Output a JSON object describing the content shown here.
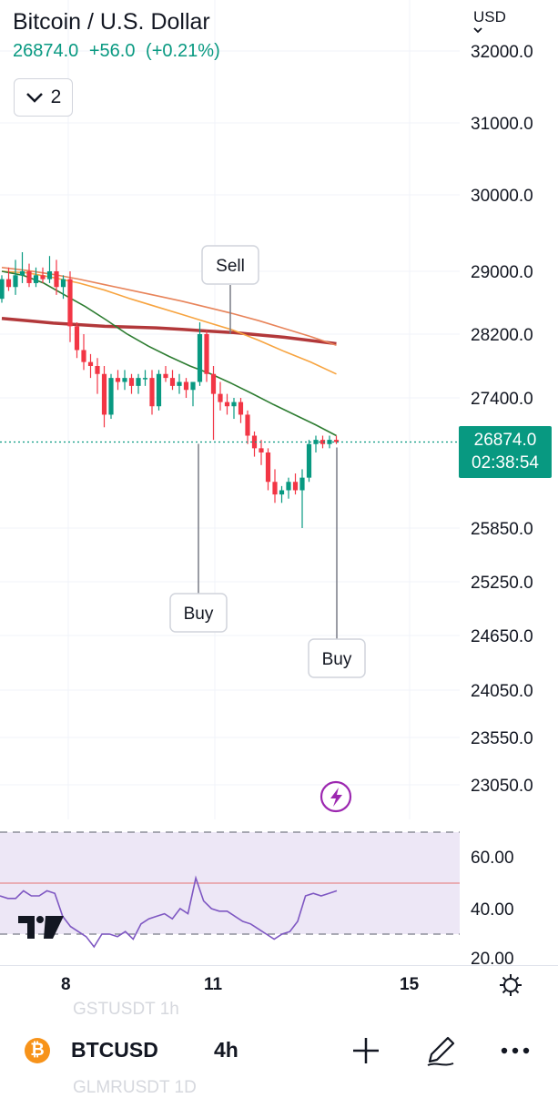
{
  "header": {
    "title": "Bitcoin / U.S. Dollar",
    "last_price": "26874.0",
    "change": "+56.0",
    "change_pct": "(+0.21%)",
    "indicators_count": "2",
    "currency": "USD"
  },
  "price_axis": {
    "labels": [
      "32000.0",
      "31000.0",
      "30000.0",
      "29000.0",
      "28200.0",
      "27400.0",
      "25850.0",
      "25250.0",
      "24650.0",
      "24050.0",
      "23550.0",
      "23050.0"
    ],
    "current_price": "26874.0",
    "countdown": "02:38:54"
  },
  "signals": [
    {
      "label": "Sell",
      "type": "sell"
    },
    {
      "label": "Buy",
      "type": "buy"
    },
    {
      "label": "Buy",
      "type": "buy"
    }
  ],
  "rsi_axis": {
    "labels": [
      "60.00",
      "40.00",
      "20.00"
    ]
  },
  "time_axis": {
    "labels": [
      "8",
      "11",
      "15"
    ]
  },
  "bottom_bar": {
    "symbol": "BTCUSD",
    "interval": "4h",
    "ghost_top": "GSTUSDT   1h",
    "ghost_bottom": "GLMRUSDT  1D"
  },
  "icons": [
    "bitcoin-icon",
    "plus-icon",
    "pen-icon",
    "more-icon",
    "settings-icon",
    "lightning-icon",
    "tradingview-logo",
    "chevron-down-icon"
  ],
  "colors": {
    "up": "#089981",
    "down": "#f23645",
    "ma_fast": "#2e7d32",
    "ma_mid": "#f7a440",
    "ma_slow": "#e8845a",
    "ma_long": "#b2383a",
    "rsi": "#7e57c2",
    "rsi_band": "#ede7f6"
  },
  "chart_data": {
    "type": "candlestick",
    "interval": "4h",
    "symbol": "BTCUSD",
    "last": 26874.0,
    "candles": [
      [
        28650,
        28950,
        28600,
        28900
      ],
      [
        28900,
        29050,
        28750,
        28800
      ],
      [
        28800,
        29150,
        28700,
        28950
      ],
      [
        28950,
        29250,
        28850,
        29000
      ],
      [
        29000,
        29100,
        28800,
        28850
      ],
      [
        28850,
        29050,
        28800,
        28950
      ],
      [
        28950,
        29050,
        28850,
        28900
      ],
      [
        28900,
        29200,
        28850,
        29000
      ],
      [
        29000,
        29150,
        28700,
        28800
      ],
      [
        28800,
        28950,
        28650,
        28900
      ],
      [
        28900,
        29000,
        28100,
        28300
      ],
      [
        28300,
        28350,
        27900,
        28000
      ],
      [
        28000,
        28200,
        27750,
        27850
      ],
      [
        27850,
        27950,
        27650,
        27800
      ],
      [
        27800,
        27900,
        27450,
        27700
      ],
      [
        27700,
        27800,
        27050,
        27200
      ],
      [
        27200,
        27700,
        27150,
        27650
      ],
      [
        27650,
        27750,
        27500,
        27600
      ],
      [
        27600,
        27750,
        27500,
        27650
      ],
      [
        27650,
        27700,
        27450,
        27550
      ],
      [
        27550,
        27700,
        27450,
        27650
      ],
      [
        27650,
        27750,
        27550,
        27650
      ],
      [
        27650,
        27750,
        27200,
        27300
      ],
      [
        27300,
        27750,
        27250,
        27700
      ],
      [
        27700,
        27800,
        27600,
        27650
      ],
      [
        27650,
        27750,
        27500,
        27550
      ],
      [
        27550,
        27700,
        27450,
        27600
      ],
      [
        27600,
        27650,
        27400,
        27500
      ],
      [
        27500,
        27600,
        27300,
        27600
      ],
      [
        27600,
        28350,
        27550,
        28200
      ],
      [
        28200,
        28250,
        27600,
        27700
      ],
      [
        27700,
        27800,
        26900,
        27450
      ],
      [
        27450,
        27600,
        27250,
        27350
      ],
      [
        27350,
        27450,
        27200,
        27300
      ],
      [
        27300,
        27400,
        27150,
        27350
      ],
      [
        27350,
        27400,
        27100,
        27200
      ],
      [
        27200,
        27250,
        26850,
        26950
      ],
      [
        26950,
        27000,
        26700,
        26800
      ],
      [
        26800,
        26900,
        26600,
        26750
      ],
      [
        26750,
        26800,
        26300,
        26400
      ],
      [
        26400,
        26550,
        26150,
        26250
      ],
      [
        26250,
        26350,
        26150,
        26300
      ],
      [
        26300,
        26450,
        26200,
        26400
      ],
      [
        26400,
        26500,
        26250,
        26300
      ],
      [
        26300,
        26550,
        25850,
        26450
      ],
      [
        26450,
        26900,
        26400,
        26850
      ],
      [
        26850,
        26950,
        26750,
        26900
      ],
      [
        26900,
        26950,
        26800,
        26850
      ],
      [
        26850,
        26950,
        26800,
        26900
      ],
      [
        26900,
        26950,
        26850,
        26874
      ]
    ],
    "sma_fast": [
      29000,
      28950,
      28850,
      28700,
      28550,
      28380,
      28200,
      28050,
      27920,
      27800,
      27700,
      27580,
      27450,
      27320,
      27200,
      27080,
      26950
    ],
    "sma_mid": [
      29000,
      28980,
      28920,
      28850,
      28760,
      28650,
      28550,
      28450,
      28350,
      28250,
      28120,
      27980,
      27850,
      27700
    ],
    "sma_slow": [
      29050,
      29010,
      28960,
      28900,
      28830,
      28760,
      28690,
      28620,
      28540,
      28460,
      28370,
      28270,
      28170,
      28060
    ],
    "sma_long": [
      28400,
      28370,
      28340,
      28320,
      28300,
      28290,
      28280,
      28260,
      28240,
      28220,
      28190,
      28160,
      28120,
      28080
    ],
    "rsi": [
      45,
      44,
      44,
      47,
      45,
      45,
      47,
      46,
      37,
      33,
      31,
      29,
      25,
      30,
      30,
      29,
      31,
      28,
      34,
      36,
      37,
      38,
      36,
      40,
      38,
      52,
      43,
      40,
      39,
      39,
      37,
      35,
      34,
      32,
      30,
      28,
      30,
      31,
      35,
      45,
      46,
      45,
      46,
      47
    ],
    "rsi_bands": {
      "upper": 70,
      "middle": 50,
      "lower": 30
    },
    "annotations": [
      {
        "label": "Sell",
        "candle": 32
      },
      {
        "label": "Buy",
        "candle": 29
      },
      {
        "label": "Buy",
        "candle": 49
      }
    ]
  }
}
